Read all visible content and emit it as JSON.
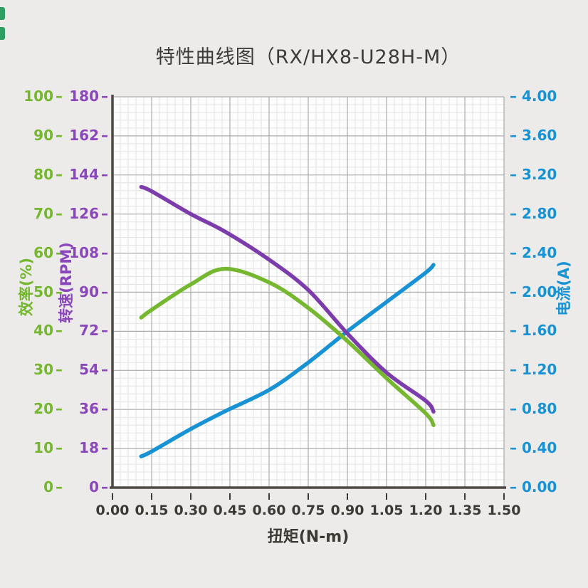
{
  "title": "特性曲线图（RX/HX8-U28H-M）",
  "colors": {
    "efficiency_green": "#75B72E",
    "rpm_purple_curve": "#7C3CAC",
    "rpm_purple_label": "#8A46BB",
    "current_blue": "#1692D5",
    "text_dark": "#3D3935",
    "axis_line": "#4C4843",
    "grid_major": "#ACACAC",
    "grid_minor": "#E4E4E4",
    "plot_background": "#FDFDFD",
    "page_background": "#ECEBE9"
  },
  "chart_data": {
    "type": "line",
    "title": "特性曲线图（RX/HX8-U28H-M）",
    "x": [
      0.11,
      0.15,
      0.3,
      0.43,
      0.6,
      0.75,
      0.9,
      1.05,
      1.2,
      1.23
    ],
    "series": [
      {
        "name": "电流",
        "axis": "current",
        "color_key": "current_blue",
        "values": [
          0.32,
          0.37,
          0.6,
          0.78,
          1.0,
          1.28,
          1.6,
          1.9,
          2.2,
          2.28
        ]
      },
      {
        "name": "效率",
        "axis": "efficiency",
        "color_key": "efficiency_green",
        "values": [
          43.5,
          45.5,
          52.0,
          56.0,
          52.5,
          46.0,
          37.5,
          28.0,
          19.0,
          16.0
        ]
      },
      {
        "name": "转速",
        "axis": "rpm",
        "color_key": "rpm_purple_curve",
        "values": [
          138.5,
          136.5,
          126.0,
          118.0,
          105.0,
          91.0,
          71.0,
          53.0,
          40.0,
          35.0
        ]
      }
    ],
    "axes": {
      "x": {
        "label": "扭矩(N-m)",
        "min": 0,
        "max": 1.5,
        "ticks": [
          "0.00",
          "0.15",
          "0.30",
          "0.45",
          "0.60",
          "0.75",
          "0.90",
          "1.05",
          "1.20",
          "1.35",
          "1.50"
        ]
      },
      "efficiency": {
        "label": "效率(%)",
        "min": 0,
        "max": 100,
        "ticks": [
          "0",
          "10",
          "20",
          "30",
          "40",
          "50",
          "60",
          "70",
          "80",
          "90",
          "100"
        ]
      },
      "rpm": {
        "label": "转速(RPM)",
        "min": 0,
        "max": 180,
        "ticks": [
          "0",
          "18",
          "36",
          "54",
          "72",
          "90",
          "108",
          "126",
          "144",
          "162",
          "180"
        ]
      },
      "current": {
        "label": "电流(A)",
        "min": 0,
        "max": 4,
        "ticks": [
          "0.00",
          "0.40",
          "0.80",
          "1.20",
          "1.60",
          "2.00",
          "2.40",
          "2.80",
          "3.20",
          "3.60",
          "4.00"
        ]
      }
    },
    "grid": "major + minor (5 subdivisions), on",
    "legend": "none"
  }
}
